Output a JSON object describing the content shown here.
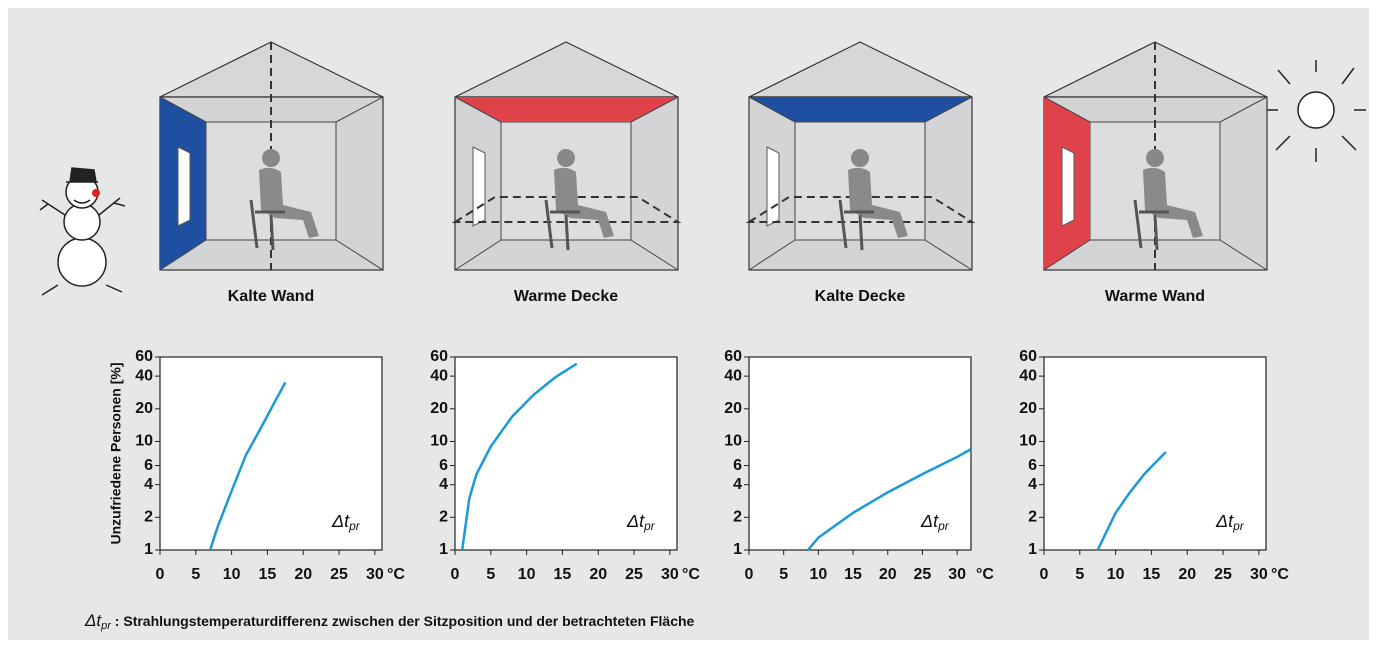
{
  "chart_data": [
    {
      "type": "line",
      "title": "Kalte Wand",
      "ylabel": "Unzufriedene Personen [%]",
      "x_unit": "°C",
      "annotation": "Δt",
      "annotation_sub": "pr",
      "x": [
        7,
        8,
        10,
        12,
        14,
        16,
        17.5
      ],
      "values": [
        1,
        1.6,
        3.5,
        7.5,
        13,
        23,
        35
      ],
      "color": "#1a9ad6",
      "xlim": [
        0,
        31
      ],
      "xticks": [
        0,
        5,
        10,
        15,
        20,
        25,
        30
      ],
      "ylim": [
        1,
        60
      ],
      "yticks": [
        1,
        2,
        4,
        6,
        10,
        20,
        40,
        60
      ],
      "yscale": "log"
    },
    {
      "type": "line",
      "title": "Warme Decke",
      "x_unit": "°C",
      "annotation": "Δt",
      "annotation_sub": "pr",
      "x": [
        1,
        2,
        3,
        5,
        8,
        11,
        14,
        17
      ],
      "values": [
        1,
        3,
        5,
        9,
        17,
        27,
        39,
        52
      ],
      "color": "#1a9ad6",
      "xlim": [
        0,
        31
      ],
      "xticks": [
        0,
        5,
        10,
        15,
        20,
        25,
        30
      ],
      "ylim": [
        1,
        60
      ],
      "yticks": [
        1,
        2,
        4,
        6,
        10,
        20,
        40,
        60
      ],
      "yscale": "log"
    },
    {
      "type": "line",
      "title": "Kalte Decke",
      "x_unit": "°C",
      "annotation": "Δt",
      "annotation_sub": "pr",
      "x": [
        8.5,
        10,
        15,
        20,
        25,
        30,
        32
      ],
      "values": [
        1,
        1.3,
        2.2,
        3.4,
        5,
        7.2,
        8.5
      ],
      "color": "#1a9ad6",
      "xlim": [
        0,
        32
      ],
      "xticks": [
        0,
        5,
        10,
        15,
        20,
        25,
        30
      ],
      "ylim": [
        1,
        60
      ],
      "yticks": [
        1,
        2,
        4,
        6,
        10,
        20,
        40,
        60
      ],
      "yscale": "log"
    },
    {
      "type": "line",
      "title": "Warme Wand",
      "x_unit": "°C",
      "annotation": "Δt",
      "annotation_sub": "pr",
      "x": [
        7.5,
        10,
        12,
        14,
        17
      ],
      "values": [
        1,
        2.2,
        3.4,
        5,
        8
      ],
      "color": "#1a9ad6",
      "xlim": [
        0,
        31
      ],
      "xticks": [
        0,
        5,
        10,
        15,
        20,
        25,
        30
      ],
      "ylim": [
        1,
        60
      ],
      "yticks": [
        1,
        2,
        4,
        6,
        10,
        20,
        40,
        60
      ],
      "yscale": "log"
    }
  ],
  "footnote": {
    "symbol": "Δt",
    "sub": "pr",
    "text": " : Strahlungstemperaturdifferenz zwischen der Sitzposition und der betrachteten Fläche"
  }
}
